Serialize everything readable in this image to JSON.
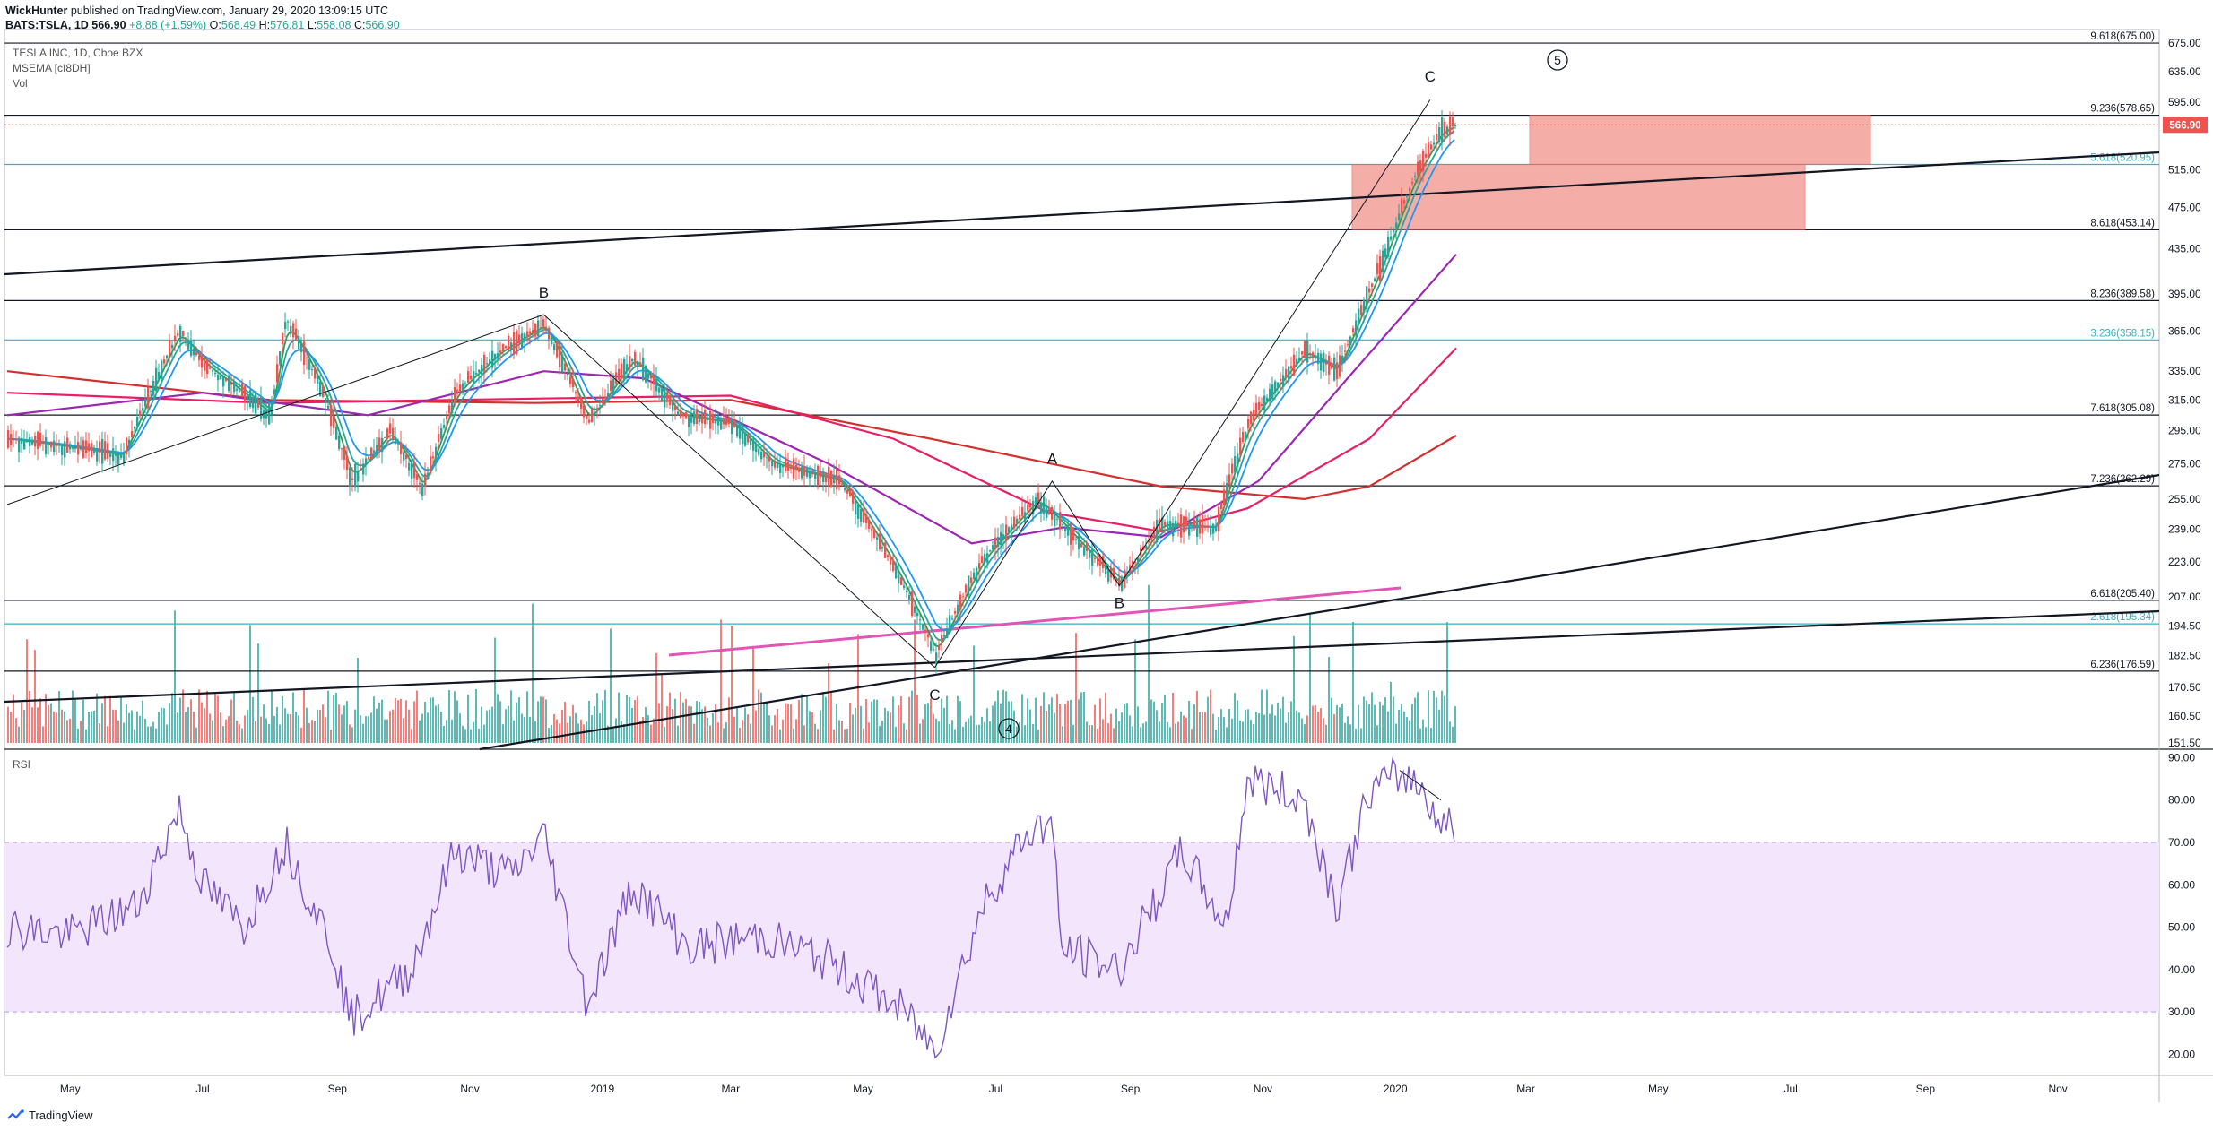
{
  "header": {
    "author": "WickHunter",
    "published": "published on TradingView.com, January 29, 2020 13:09:15 UTC",
    "symbol_line": "BATS:TSLA, 1D 566.90",
    "change": "+8.88 (+1.59%)",
    "ohlc": {
      "O": "568.49",
      "H": "576.81",
      "L": "558.08",
      "C": "566.90"
    }
  },
  "panes": {
    "main_title": "TESLA INC, 1D, Cboe BZX",
    "indicator": "MSEMA [cI8DH]",
    "volume": "Vol",
    "rsi": "RSI"
  },
  "footer": {
    "brand": "TradingView"
  },
  "colors": {
    "up": "#26a69a",
    "down": "#ef5350",
    "rsi": "#7e57c2",
    "rsi_band": "#f3e5fc",
    "zone": "#f28b82",
    "fib_black": "#131722",
    "fib_blue": "#2fb3c6",
    "price_label": "#ef5350",
    "ema_green": "#2e9e52",
    "ema_teal": "#26a69a",
    "ema_blue": "#2196f3",
    "ema_purple": "#9c27b0",
    "ema_pink": "#e91e63",
    "ema_red": "#d32f2f"
  },
  "chart_data": {
    "type": "candlestick",
    "title": "TESLA INC, 1D, Cboe BZX",
    "current_price": "566.90",
    "x_ticks": [
      "May",
      "Jul",
      "Sep",
      "Nov",
      "2019",
      "Mar",
      "May",
      "Jul",
      "Sep",
      "Nov",
      "2020",
      "Mar",
      "May",
      "Jul",
      "Sep",
      "Nov"
    ],
    "y_ticks": [
      "675.00",
      "635.00",
      "595.00",
      "555.00",
      "515.00",
      "475.00",
      "435.00",
      "395.00",
      "365.00",
      "335.00",
      "315.00",
      "295.00",
      "275.00",
      "255.00",
      "239.00",
      "223.00",
      "207.00",
      "194.50",
      "182.50",
      "170.50",
      "160.50",
      "151.50"
    ],
    "y_tick_values": [
      675,
      635,
      595,
      555,
      515,
      475,
      435,
      395,
      365,
      335,
      315,
      295,
      275,
      255,
      239,
      223,
      207,
      194.5,
      182.5,
      170.5,
      160.5,
      151.5
    ],
    "fib_levels": [
      {
        "label": "9.618(675.00)",
        "value": 675.0,
        "color": "black"
      },
      {
        "label": "9.236(578.65)",
        "value": 578.65,
        "color": "black"
      },
      {
        "label": "5.618(520.95)",
        "value": 520.95,
        "color": "blue"
      },
      {
        "label": "8.618(453.14)",
        "value": 453.14,
        "color": "black"
      },
      {
        "label": "8.236(389.58)",
        "value": 389.58,
        "color": "black"
      },
      {
        "label": "3.236(358.15)",
        "value": 358.15,
        "color": "blue"
      },
      {
        "label": "7.618(305.08)",
        "value": 305.08,
        "color": "black"
      },
      {
        "label": "7.236(262.29)",
        "value": 262.29,
        "color": "black"
      },
      {
        "label": "6.618(205.40)",
        "value": 205.4,
        "color": "black"
      },
      {
        "label": "2.618(195.34)",
        "value": 195.34,
        "color": "blue"
      },
      {
        "label": "6.236(176.59)",
        "value": 176.59,
        "color": "black"
      }
    ],
    "wave_labels": [
      "B",
      "C",
      "A",
      "B",
      "C"
    ],
    "wave_circles": [
      "5",
      "4"
    ],
    "price_path": [
      [
        "2018-04-02",
        290
      ],
      [
        "2018-05-01",
        285
      ],
      [
        "2018-05-25",
        280
      ],
      [
        "2018-06-20",
        365
      ],
      [
        "2018-07-01",
        340
      ],
      [
        "2018-08-01",
        305
      ],
      [
        "2018-08-08",
        375
      ],
      [
        "2018-08-25",
        320
      ],
      [
        "2018-09-07",
        265
      ],
      [
        "2018-09-25",
        295
      ],
      [
        "2018-10-10",
        260
      ],
      [
        "2018-10-25",
        320
      ],
      [
        "2018-11-15",
        350
      ],
      [
        "2018-12-05",
        370
      ],
      [
        "2018-12-25",
        300
      ],
      [
        "2019-01-15",
        345
      ],
      [
        "2019-02-05",
        305
      ],
      [
        "2019-03-01",
        300
      ],
      [
        "2019-03-20",
        275
      ],
      [
        "2019-04-20",
        265
      ],
      [
        "2019-05-15",
        220
      ],
      [
        "2019-06-03",
        183
      ],
      [
        "2019-06-25",
        225
      ],
      [
        "2019-07-20",
        255
      ],
      [
        "2019-08-10",
        230
      ],
      [
        "2019-08-27",
        212
      ],
      [
        "2019-09-15",
        242
      ],
      [
        "2019-10-10",
        240
      ],
      [
        "2019-10-25",
        300
      ],
      [
        "2019-11-20",
        350
      ],
      [
        "2019-12-05",
        335
      ],
      [
        "2019-12-25",
        420
      ],
      [
        "2020-01-10",
        510
      ],
      [
        "2020-01-22",
        560
      ],
      [
        "2020-01-29",
        566.9
      ]
    ],
    "emas": [
      {
        "name": "ema200",
        "color": "red",
        "points": [
          [
            "2018-04-02",
            335
          ],
          [
            "2018-08-01",
            315
          ],
          [
            "2018-12-01",
            313
          ],
          [
            "2019-03-01",
            315
          ],
          [
            "2019-06-01",
            290
          ],
          [
            "2019-09-15",
            262
          ],
          [
            "2019-11-20",
            255
          ],
          [
            "2019-12-20",
            262
          ],
          [
            "2020-01-29",
            292
          ]
        ]
      },
      {
        "name": "ema100",
        "color": "pink",
        "points": [
          [
            "2018-04-02",
            320
          ],
          [
            "2018-08-01",
            313
          ],
          [
            "2018-12-01",
            316
          ],
          [
            "2019-03-01",
            318
          ],
          [
            "2019-05-15",
            290
          ],
          [
            "2019-07-25",
            248
          ],
          [
            "2019-09-15",
            238
          ],
          [
            "2019-10-25",
            250
          ],
          [
            "2019-12-20",
            290
          ],
          [
            "2020-01-29",
            352
          ]
        ]
      },
      {
        "name": "ema50",
        "color": "purple",
        "points": [
          [
            "2018-04-02",
            305
          ],
          [
            "2018-07-01",
            320
          ],
          [
            "2018-09-15",
            305
          ],
          [
            "2018-12-05",
            335
          ],
          [
            "2019-01-20",
            330
          ],
          [
            "2019-04-15",
            275
          ],
          [
            "2019-06-20",
            232
          ],
          [
            "2019-08-01",
            240
          ],
          [
            "2019-09-15",
            235
          ],
          [
            "2019-10-30",
            265
          ],
          [
            "2019-12-10",
            330
          ],
          [
            "2020-01-29",
            430
          ]
        ]
      }
    ],
    "volume_range": [
      0,
      60
    ],
    "rsi_range": [
      15,
      92
    ],
    "rsi_band": [
      30,
      70
    ],
    "rsi_y_ticks": [
      "90.00",
      "80.00",
      "70.00",
      "60.00",
      "50.00",
      "40.00",
      "30.00",
      "20.00"
    ],
    "rsi_tick_values": [
      90,
      80,
      70,
      60,
      50,
      40,
      30,
      20
    ],
    "rsi_path": [
      [
        "2018-04-02",
        50
      ],
      [
        "2018-05-01",
        48
      ],
      [
        "2018-06-01",
        55
      ],
      [
        "2018-06-20",
        78
      ],
      [
        "2018-07-01",
        60
      ],
      [
        "2018-07-20",
        50
      ],
      [
        "2018-08-08",
        70
      ],
      [
        "2018-08-30",
        45
      ],
      [
        "2018-09-07",
        28
      ],
      [
        "2018-10-05",
        40
      ],
      [
        "2018-10-25",
        68
      ],
      [
        "2018-11-20",
        62
      ],
      [
        "2018-12-05",
        72
      ],
      [
        "2018-12-25",
        32
      ],
      [
        "2019-01-15",
        60
      ],
      [
        "2019-02-10",
        45
      ],
      [
        "2019-03-15",
        48
      ],
      [
        "2019-04-15",
        42
      ],
      [
        "2019-05-20",
        30
      ],
      [
        "2019-06-03",
        21
      ],
      [
        "2019-06-25",
        55
      ],
      [
        "2019-07-15",
        72
      ],
      [
        "2019-07-27",
        75
      ],
      [
        "2019-07-31",
        45
      ],
      [
        "2019-08-27",
        40
      ],
      [
        "2019-09-25",
        68
      ],
      [
        "2019-10-15",
        50
      ],
      [
        "2019-10-25",
        85
      ],
      [
        "2019-11-20",
        80
      ],
      [
        "2019-12-05",
        55
      ],
      [
        "2019-12-20",
        82
      ],
      [
        "2020-01-05",
        86
      ],
      [
        "2020-01-15",
        82
      ],
      [
        "2020-01-22",
        74
      ],
      [
        "2020-01-29",
        75
      ]
    ]
  }
}
